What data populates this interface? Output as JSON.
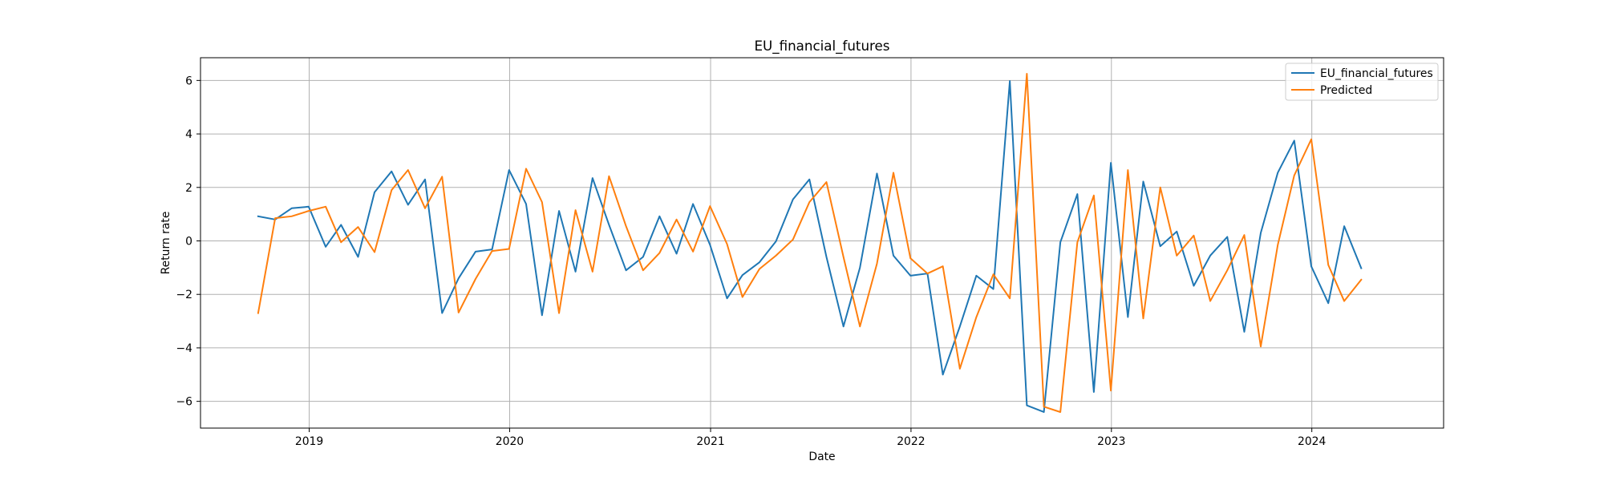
{
  "chart_data": {
    "type": "line",
    "title": "EU_financial_futures",
    "xlabel": "Date",
    "ylabel": "Return rate",
    "xlim": [
      "2018-06-17",
      "2024-08-28"
    ],
    "ylim": [
      -7.0,
      6.85
    ],
    "x_ticks": [
      "2019-01-01",
      "2020-01-01",
      "2021-01-01",
      "2022-01-01",
      "2023-01-01",
      "2024-01-01"
    ],
    "x_tick_labels": [
      "2019",
      "2020",
      "2021",
      "2022",
      "2023",
      "2024"
    ],
    "y_ticks": [
      -6,
      -4,
      -2,
      0,
      2,
      4,
      6
    ],
    "y_tick_labels": [
      "−6",
      "−4",
      "−2",
      "0",
      "2",
      "4",
      "6"
    ],
    "grid": true,
    "legend_position": "top-right",
    "x": [
      "2018-09-30",
      "2018-10-31",
      "2018-11-30",
      "2018-12-31",
      "2019-01-31",
      "2019-02-28",
      "2019-03-31",
      "2019-04-30",
      "2019-05-31",
      "2019-06-30",
      "2019-07-31",
      "2019-08-31",
      "2019-09-30",
      "2019-10-31",
      "2019-11-30",
      "2019-12-31",
      "2020-01-31",
      "2020-02-29",
      "2020-03-31",
      "2020-04-30",
      "2020-05-31",
      "2020-06-30",
      "2020-07-31",
      "2020-08-31",
      "2020-09-30",
      "2020-10-31",
      "2020-11-30",
      "2020-12-31",
      "2021-01-31",
      "2021-02-28",
      "2021-03-31",
      "2021-04-30",
      "2021-05-31",
      "2021-06-30",
      "2021-07-31",
      "2021-08-31",
      "2021-09-30",
      "2021-10-31",
      "2021-11-30",
      "2021-12-31",
      "2022-01-31",
      "2022-02-28",
      "2022-03-31",
      "2022-04-30",
      "2022-05-31",
      "2022-06-30",
      "2022-07-31",
      "2022-08-31",
      "2022-09-30",
      "2022-10-31",
      "2022-11-30",
      "2022-12-31",
      "2023-01-31",
      "2023-02-28",
      "2023-03-31",
      "2023-04-30",
      "2023-05-31",
      "2023-06-30",
      "2023-07-31",
      "2023-08-31",
      "2023-09-30",
      "2023-10-31",
      "2023-11-30",
      "2023-12-31",
      "2024-01-31",
      "2024-02-29",
      "2024-03-31"
    ],
    "series": [
      {
        "name": "EU_financial_futures",
        "color": "#1f77b4",
        "values": [
          0.92,
          0.8,
          1.22,
          1.28,
          -0.22,
          0.6,
          -0.6,
          1.82,
          2.6,
          1.35,
          2.3,
          -2.7,
          -1.4,
          -0.4,
          -0.32,
          2.65,
          1.38,
          -2.78,
          1.12,
          -1.15,
          2.35,
          0.6,
          -1.1,
          -0.6,
          0.92,
          -0.48,
          1.38,
          -0.15,
          -2.15,
          -1.28,
          -0.8,
          -0.02,
          1.55,
          2.3,
          -0.6,
          -3.2,
          -1.0,
          2.52,
          -0.55,
          -1.3,
          -1.22,
          -5.0,
          -3.2,
          -1.3,
          -1.8,
          5.98,
          -6.15,
          -6.4,
          -0.05,
          1.75,
          -5.65,
          2.92,
          -2.85,
          2.22,
          -0.2,
          0.35,
          -1.68,
          -0.55,
          0.15,
          -3.4,
          0.3,
          2.55,
          3.75,
          -0.95,
          -2.33,
          0.55,
          -1.02
        ]
      },
      {
        "name": "Predicted",
        "color": "#ff7f0e",
        "values": [
          -2.7,
          0.85,
          0.92,
          1.12,
          1.28,
          -0.05,
          0.52,
          -0.42,
          1.9,
          2.65,
          1.22,
          2.4,
          -2.68,
          -1.42,
          -0.38,
          -0.3,
          2.7,
          1.45,
          -2.7,
          1.15,
          -1.15,
          2.42,
          0.55,
          -1.1,
          -0.45,
          0.8,
          -0.4,
          1.3,
          -0.12,
          -2.1,
          -1.05,
          -0.55,
          0.05,
          1.45,
          2.2,
          -0.6,
          -3.2,
          -0.85,
          2.55,
          -0.65,
          -1.22,
          -0.95,
          -4.78,
          -2.85,
          -1.25,
          -2.15,
          6.25,
          -6.2,
          -6.4,
          -0.05,
          1.7,
          -5.6,
          2.65,
          -2.9,
          2.0,
          -0.55,
          0.2,
          -2.25,
          -1.1,
          0.22,
          -3.95,
          -0.15,
          2.45,
          3.8,
          -0.9,
          -2.25,
          -1.45
        ]
      }
    ]
  }
}
